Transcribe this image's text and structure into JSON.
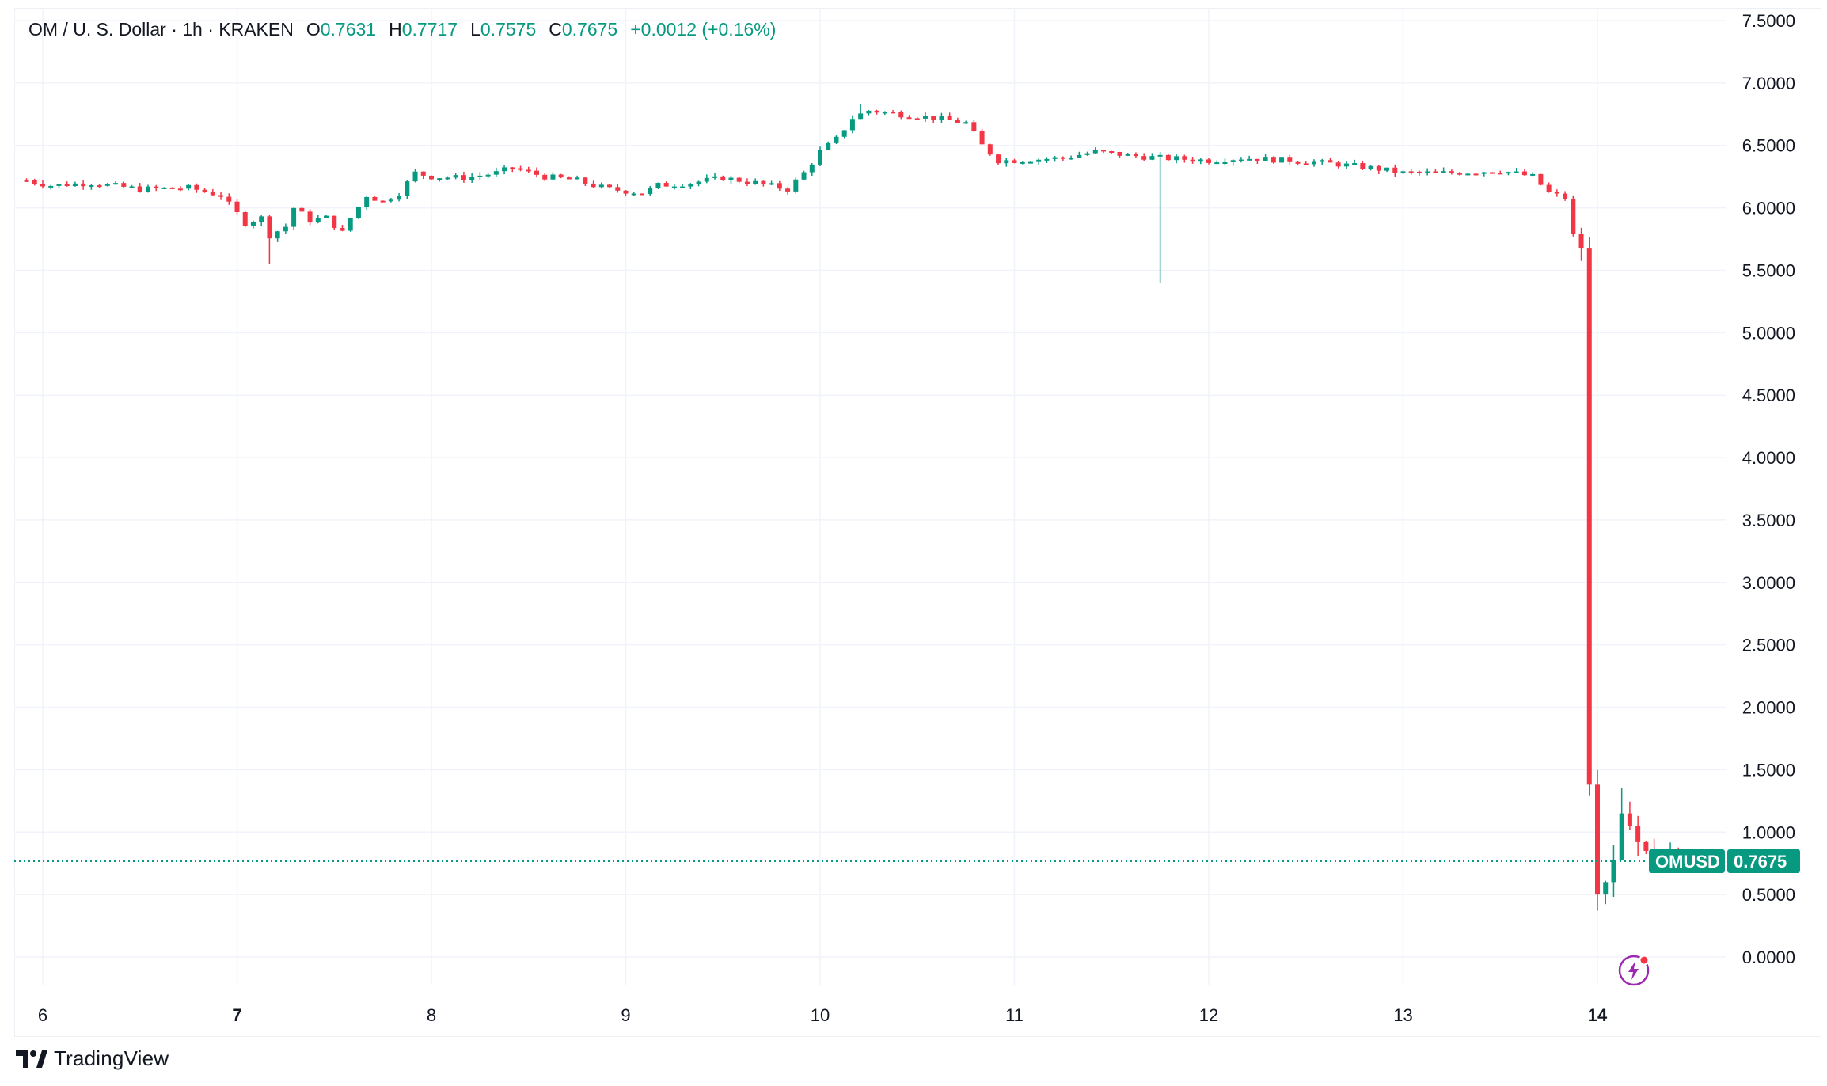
{
  "legend": {
    "symbol": "OM / U. S. Dollar · 1h · KRAKEN",
    "open_label": "O",
    "open_value": "0.7631",
    "high_label": "H",
    "high_value": "0.7717",
    "low_label": "L",
    "low_value": "0.7575",
    "close_label": "C",
    "close_value": "0.7675",
    "change": "+0.0012 (+0.16%)"
  },
  "price_tag": {
    "symbol": "OMUSD",
    "value": "0.7675"
  },
  "footer": {
    "brand": "TradingView"
  },
  "colors": {
    "up": "#089981",
    "down": "#f23645",
    "grid": "#f0f3fa",
    "text": "#131722"
  },
  "chart_data": {
    "type": "candlestick",
    "title": "OM / U. S. Dollar · 1h · KRAKEN",
    "x_axis": {
      "ticks": [
        {
          "label": "6",
          "index": 2,
          "bold": false
        },
        {
          "label": "7",
          "index": 26,
          "bold": true
        },
        {
          "label": "8",
          "index": 50,
          "bold": false
        },
        {
          "label": "9",
          "index": 74,
          "bold": false
        },
        {
          "label": "10",
          "index": 98,
          "bold": false
        },
        {
          "label": "11",
          "index": 122,
          "bold": false
        },
        {
          "label": "12",
          "index": 146,
          "bold": false
        },
        {
          "label": "13",
          "index": 170,
          "bold": false
        },
        {
          "label": "14",
          "index": 194,
          "bold": true
        }
      ]
    },
    "y_axis": {
      "min": 0,
      "max": 7.5,
      "ticks": [
        "0.0000",
        "0.5000",
        "1.0000",
        "1.5000",
        "2.0000",
        "2.5000",
        "3.0000",
        "3.5000",
        "4.0000",
        "4.5000",
        "5.0000",
        "5.5000",
        "6.0000",
        "6.5000",
        "7.0000",
        "7.5000"
      ]
    },
    "last_price": 0.7675,
    "key_points": [
      {
        "label": "6",
        "close": 6.2
      },
      {
        "label": "7",
        "close": 5.95
      },
      {
        "label": "7 low",
        "close": 5.55
      },
      {
        "label": "8",
        "close": 6.25
      },
      {
        "label": "9",
        "close": 6.15
      },
      {
        "label": "10",
        "close": 6.5
      },
      {
        "label": "10 high",
        "close": 6.83
      },
      {
        "label": "11",
        "close": 6.38
      },
      {
        "label": "11 wick low",
        "close": 5.4
      },
      {
        "label": "12",
        "close": 6.38
      },
      {
        "label": "13",
        "close": 6.28
      },
      {
        "label": "14 pre-crash",
        "close": 5.7
      },
      {
        "label": "14 crash",
        "close": 1.38
      },
      {
        "label": "14 low",
        "close": 0.37
      },
      {
        "label": "14 last",
        "close": 0.7675
      }
    ]
  }
}
